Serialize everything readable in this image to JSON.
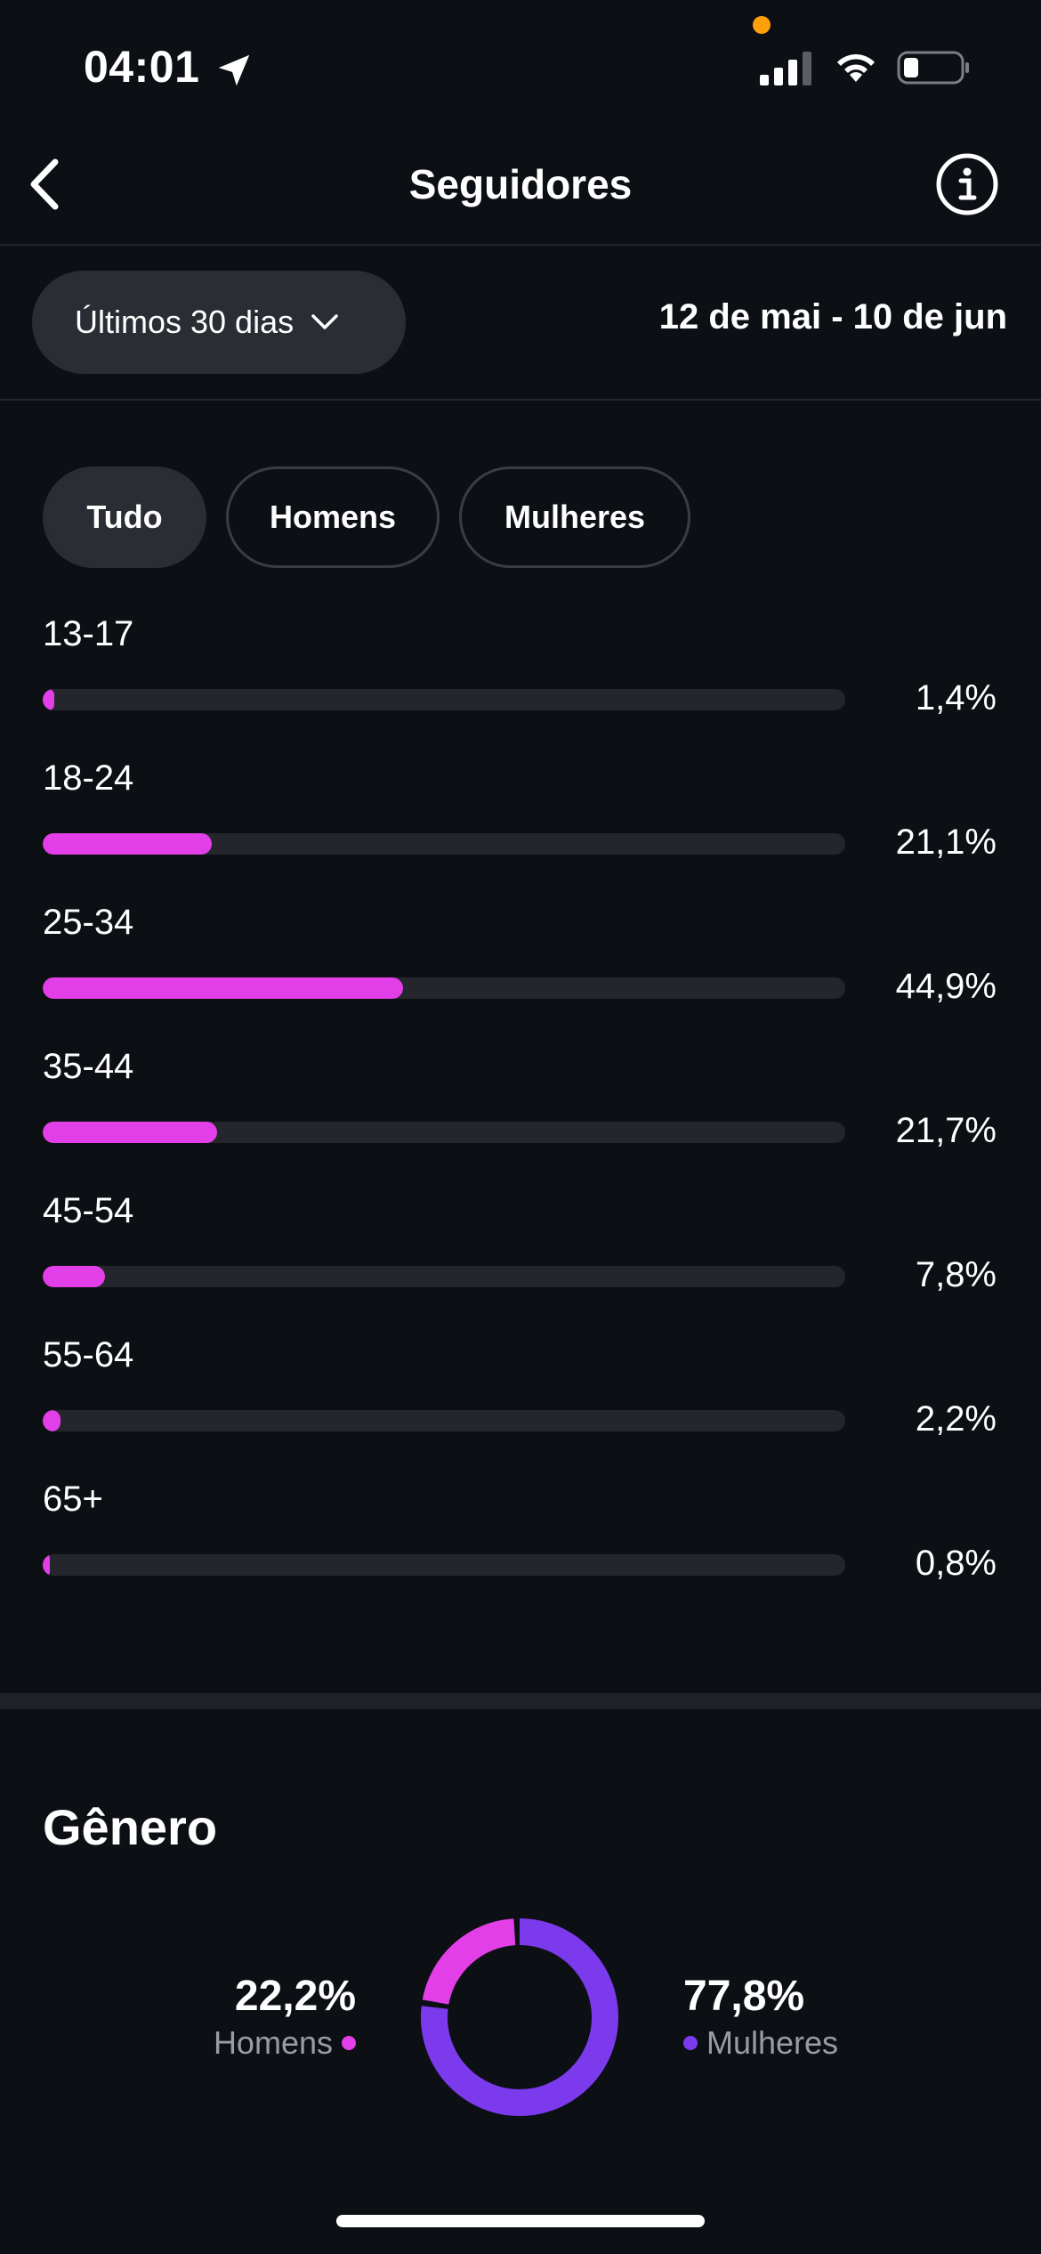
{
  "status_bar": {
    "time": "04:01",
    "icons": [
      "location-arrow-icon",
      "cellular-signal-icon",
      "wifi-icon",
      "battery-icon"
    ],
    "recording_dot_color": "#ff9f0a"
  },
  "header": {
    "title": "Seguidores",
    "back_icon": "chevron-left-icon",
    "info_icon": "info-circle-icon"
  },
  "period": {
    "selected": "Últimos 30 dias",
    "date_range": "12 de mai - 10 de jun"
  },
  "filters": [
    {
      "label": "Tudo",
      "active": true
    },
    {
      "label": "Homens",
      "active": false
    },
    {
      "label": "Mulheres",
      "active": false
    }
  ],
  "chart_data": {
    "type": "bar",
    "orientation": "horizontal",
    "categories": [
      "13-17",
      "18-24",
      "25-34",
      "35-44",
      "45-54",
      "55-64",
      "65+"
    ],
    "values": [
      1.4,
      21.1,
      44.9,
      21.7,
      7.8,
      2.2,
      0.8
    ],
    "value_labels": [
      "1,4%",
      "21,1%",
      "44,9%",
      "21,7%",
      "7,8%",
      "2,2%",
      "0,8%"
    ],
    "xlim": [
      0,
      100
    ],
    "bar_color": "#e23fe8",
    "track_color": "#24262b"
  },
  "gender": {
    "title": "Gênero",
    "men": {
      "label": "Homens",
      "value_label": "22,2%",
      "value": 22.2,
      "color": "#e23fe8"
    },
    "women": {
      "label": "Mulheres",
      "value_label": "77,8%",
      "value": 77.8,
      "color": "#7c3aed"
    }
  }
}
